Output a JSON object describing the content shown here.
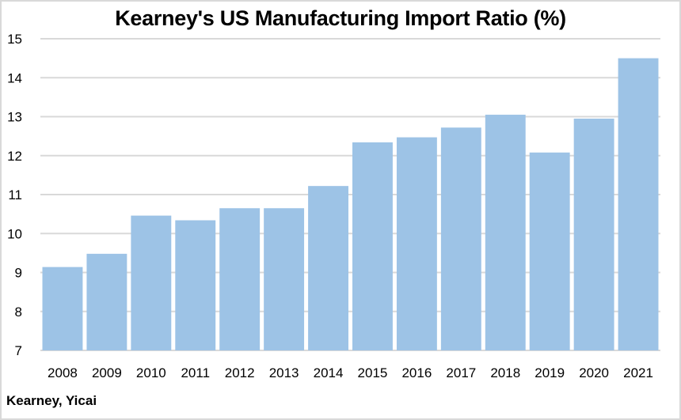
{
  "chart_data": {
    "type": "bar",
    "title": "Kearney's US Manufacturing Import Ratio (%)",
    "source": "Kearney, Yicai",
    "xlabel": "",
    "ylabel": "",
    "categories": [
      "2008",
      "2009",
      "2010",
      "2011",
      "2012",
      "2013",
      "2014",
      "2015",
      "2016",
      "2017",
      "2018",
      "2019",
      "2020",
      "2021"
    ],
    "values": [
      9.14,
      9.48,
      10.46,
      10.34,
      10.65,
      10.65,
      11.22,
      12.34,
      12.47,
      12.72,
      13.05,
      12.08,
      12.95,
      14.5
    ],
    "ylim": [
      7,
      15
    ],
    "yticks": [
      "7",
      "8",
      "9",
      "10",
      "11",
      "12",
      "13",
      "14",
      "15"
    ],
    "grid": true,
    "legend": "none",
    "colors": {
      "bar": "#9dc3e6",
      "grid": "#d9d9d9",
      "border": "#d9d9d9"
    }
  }
}
